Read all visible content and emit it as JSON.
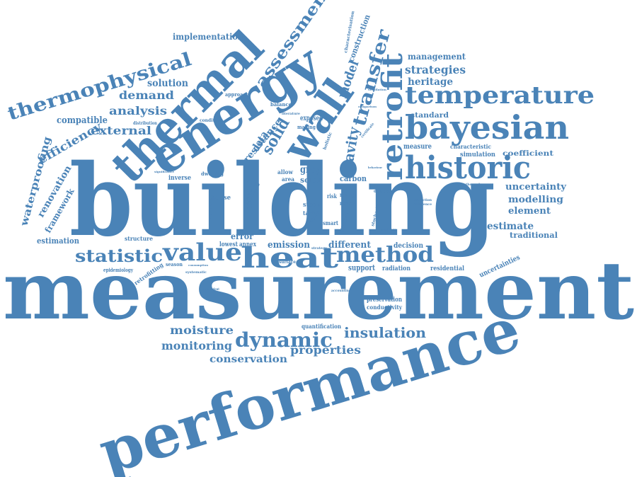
{
  "color": "#4a83b7",
  "background": "#ffffff",
  "words": {
    "measurement": "measurement",
    "building": "building",
    "performance": "performance",
    "energy": "energy",
    "thermal": "thermal",
    "wall": "wall",
    "retrofit": "retrofit",
    "temperature": "temperature",
    "bayesian": "bayesian",
    "historic": "historic",
    "thermophysical": "thermophysical",
    "value": "value",
    "heat": "heat",
    "method": "method",
    "statistic": "statistic",
    "dynamic": "dynamic",
    "insulation": "insulation",
    "moisture": "moisture",
    "monitoring": "monitoring",
    "properties": "properties",
    "conservation": "conservation",
    "assessment": "assessment",
    "transfer": "transfer",
    "model": "model",
    "construction": "construction",
    "implementation": "implementation",
    "solution": "solution",
    "demand": "demand",
    "analysis": "analysis",
    "compatible": "compatible",
    "external": "external",
    "efficiency": "efficiency",
    "waterproofing": "waterproofing",
    "renovation": "renovation",
    "framework": "framework",
    "estimation": "estimation",
    "management": "management",
    "strategies": "strategies",
    "heritage": "heritage",
    "standard": "standard",
    "measure": "measure",
    "characteristic": "characteristic",
    "simulation": "simulation",
    "coefficient": "coefficient",
    "uncertainty": "uncertainty",
    "modelling": "modelling",
    "element": "element",
    "estimate": "estimate",
    "traditional": "traditional",
    "uncertainties": "uncertainties",
    "residential": "residential",
    "radiation": "radiation",
    "support": "support",
    "decision": "decision",
    "different": "different",
    "emission": "emission",
    "error": "error",
    "lowest": "lowest",
    "annex": "annex",
    "resistance": "resistance",
    "data": "data",
    "solid": "solid",
    "cavity": "cavity",
    "grey": "grey",
    "solar": "solar",
    "carbon": "carbon",
    "mass": "mass",
    "possible": "possible",
    "house": "house",
    "inverse": "inverse",
    "dwelling": "dwelling",
    "structure": "structure",
    "epidemiology": "epidemiology",
    "retrofitting": "retrofitting",
    "season": "season",
    "quantification": "quantification",
    "preservation": "preservation",
    "conductivity": "conductivity",
    "approach": "approach",
    "balance": "balance",
    "condition": "condition",
    "distribution": "distribution",
    "exposed": "exposed",
    "making": "making",
    "holistic": "holistic",
    "sustainable": "sustainable",
    "area": "area",
    "allow": "allow",
    "stock": "stock",
    "task": "task",
    "rating": "rating",
    "meter": "meter",
    "smart": "smart",
    "whole": "whole",
    "effective": "effective",
    "risk": "risk",
    "domestic": "domestic",
    "characterisation": "characterisation",
    "accounting": "accounting",
    "systematic": "systematic",
    "independent": "independent",
    "strategy": "strategy",
    "surface": "surface",
    "prediction": "prediction",
    "challenge": "challenge",
    "significance": "significance",
    "consumption": "consumption",
    "comparison": "comparison",
    "literature": "literature",
    "certificate": "certificate",
    "behaviour": "behaviour",
    "hygrothermal": "hygrothermal",
    "stochastic": "stochastic",
    "ventilation": "ventilation",
    "difference": "difference"
  }
}
